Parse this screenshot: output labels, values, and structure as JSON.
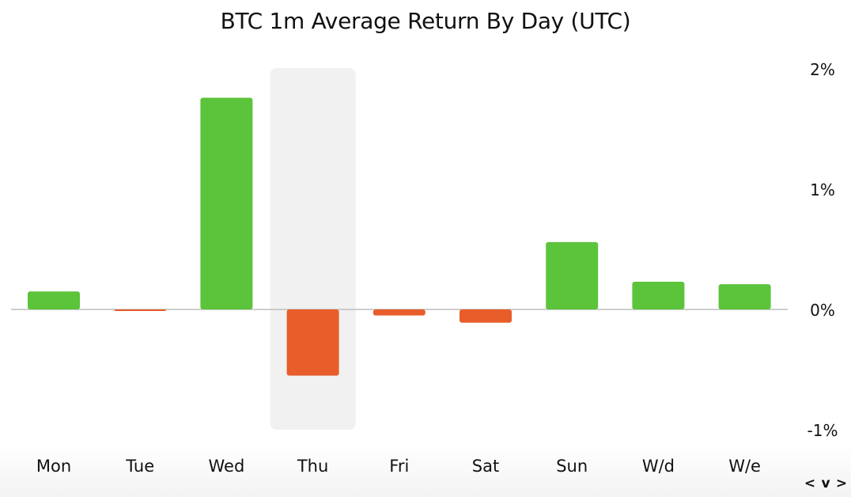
{
  "chart_data": {
    "type": "bar",
    "title": "BTC 1m Average Return By Day (UTC)",
    "categories": [
      "Mon",
      "Tue",
      "Wed",
      "Thu",
      "Fri",
      "Sat",
      "Sun",
      "W/d",
      "W/e"
    ],
    "values": [
      0.15,
      -0.01,
      1.76,
      -0.55,
      -0.05,
      -0.11,
      0.56,
      0.23,
      0.21
    ],
    "unit": "%",
    "ylim": [
      -1,
      2
    ],
    "yticks": [
      2,
      1,
      0,
      -1
    ],
    "ytick_labels": [
      "2%",
      "1%",
      "0%",
      "-1%"
    ],
    "y_axis_position": "right",
    "highlighted_category": "Thu",
    "grid": false,
    "colors": {
      "positive": "#5BC43B",
      "negative": "#E85D2A",
      "highlight": "#F1F1F1",
      "zero_line": "#BDBDBD"
    }
  },
  "nav": {
    "prev": "<",
    "down": "v",
    "next": ">"
  }
}
